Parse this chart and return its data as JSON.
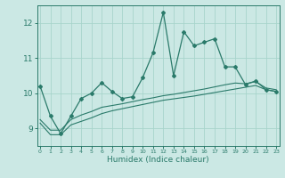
{
  "xlabel": "Humidex (Indice chaleur)",
  "background_color": "#cbe8e4",
  "grid_color": "#a8d4cc",
  "line_color": "#2a7a6a",
  "x_values": [
    0,
    1,
    2,
    3,
    4,
    5,
    6,
    7,
    8,
    9,
    10,
    11,
    12,
    13,
    14,
    15,
    16,
    17,
    18,
    19,
    20,
    21,
    22,
    23
  ],
  "y_main": [
    10.2,
    9.35,
    8.85,
    9.35,
    9.85,
    10.0,
    10.3,
    10.05,
    9.85,
    9.9,
    10.45,
    11.15,
    12.3,
    10.5,
    11.75,
    11.35,
    11.45,
    11.55,
    10.75,
    10.75,
    10.25,
    10.35,
    10.1,
    10.05
  ],
  "y_lower": [
    9.15,
    8.82,
    8.82,
    9.1,
    9.2,
    9.3,
    9.42,
    9.5,
    9.56,
    9.62,
    9.68,
    9.74,
    9.8,
    9.84,
    9.88,
    9.92,
    9.97,
    10.02,
    10.07,
    10.12,
    10.17,
    10.22,
    10.1,
    10.05
  ],
  "y_upper": [
    9.25,
    8.95,
    8.95,
    9.25,
    9.38,
    9.48,
    9.6,
    9.65,
    9.7,
    9.76,
    9.82,
    9.87,
    9.93,
    9.97,
    10.02,
    10.07,
    10.12,
    10.18,
    10.24,
    10.29,
    10.27,
    10.33,
    10.15,
    10.1
  ],
  "ylim": [
    8.5,
    12.5
  ],
  "yticks": [
    9,
    10,
    11,
    12
  ],
  "xticks": [
    0,
    1,
    2,
    3,
    4,
    5,
    6,
    7,
    8,
    9,
    10,
    11,
    12,
    13,
    14,
    15,
    16,
    17,
    18,
    19,
    20,
    21,
    22,
    23
  ]
}
